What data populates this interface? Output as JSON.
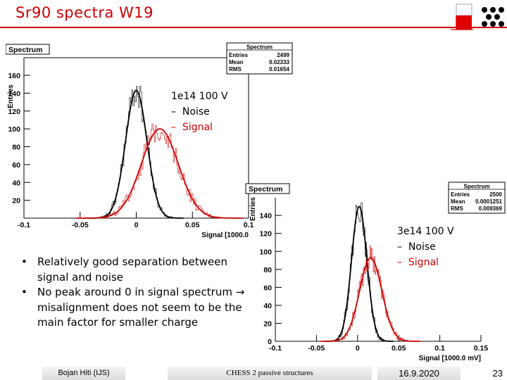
{
  "slide": {
    "title": "Sr90 spectra W19",
    "bullets": [
      "Relatively good separation between signal and noise",
      "No peak around 0 in signal spectrum → misalignment does not seem to be the main factor for smaller charge"
    ],
    "footer": {
      "author": "Bojan Hiti (IJS)",
      "conference": "CHESS 2 passive structures",
      "date": "16.9.2020",
      "page": "23"
    }
  },
  "colors": {
    "accent": "#cc0000",
    "noise": "#000000",
    "signal": "#cc0000"
  },
  "chart_data": [
    {
      "type": "line",
      "title": "Spectrum",
      "xlabel": "Signal [1000.0",
      "ylabel": "Entries",
      "xlim": [
        -0.1,
        0.1
      ],
      "ylim": [
        0,
        175
      ],
      "x_ticks": [
        "-0.1",
        "-0.05",
        "0",
        "0.05",
        "0.1"
      ],
      "y_ticks": [
        "20",
        "40",
        "60",
        "80",
        "100",
        "120",
        "140",
        "160"
      ],
      "stats": {
        "title": "Spectrum",
        "Entries": "2499",
        "Mean": "0.02333",
        "RMS": "0.01654"
      },
      "legend": {
        "condition": "1e14 100 V",
        "noise": "Noise",
        "signal": "Signal"
      },
      "series": [
        {
          "name": "Noise",
          "color": "#000000",
          "mean": 0.0,
          "sigma": 0.0095,
          "peak": 143
        },
        {
          "name": "Signal",
          "color": "#cc0000",
          "mean": 0.021,
          "sigma": 0.0165,
          "peak": 100
        }
      ]
    },
    {
      "type": "line",
      "title": "Spectrum",
      "xlabel": "Signal [1000.0 mV]",
      "ylabel": "Entries",
      "xlim": [
        -0.1,
        0.15
      ],
      "ylim": [
        0,
        155
      ],
      "x_ticks": [
        "-0.1",
        "-0.05",
        "0",
        "0.05",
        "0.1",
        "0.15"
      ],
      "y_ticks": [
        "0",
        "20",
        "40",
        "60",
        "80",
        "100",
        "120",
        "140"
      ],
      "stats": {
        "title": "Spectrum",
        "Entries": "2500",
        "Mean": "0.0001251",
        "RMS": "0.009369"
      },
      "legend": {
        "condition": "3e14 100 V",
        "noise": "Noise",
        "signal": "Signal"
      },
      "series": [
        {
          "name": "Noise",
          "color": "#000000",
          "mean": 0.002,
          "sigma": 0.0093,
          "peak": 150
        },
        {
          "name": "Signal",
          "color": "#cc0000",
          "mean": 0.016,
          "sigma": 0.0135,
          "peak": 93
        }
      ]
    }
  ]
}
